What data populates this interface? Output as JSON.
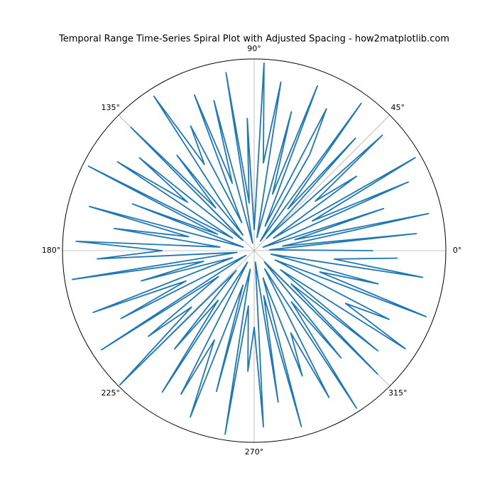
{
  "chart_data": {
    "type": "polar-line",
    "title": "Temporal Range Time-Series Spiral Plot with Adjusted Spacing - how2matplotlib.com",
    "x": [
      0,
      3,
      6,
      9,
      12,
      15,
      18,
      21,
      24,
      27,
      30,
      33,
      36,
      39,
      42,
      45,
      48,
      51,
      54,
      57,
      60,
      63,
      66,
      69,
      72,
      75,
      78,
      81,
      84,
      87,
      90,
      93,
      96,
      99,
      102,
      105,
      108,
      111,
      114,
      117,
      120,
      123,
      126,
      129,
      132,
      135,
      138,
      141,
      144,
      147,
      150,
      153,
      156,
      159,
      162,
      165,
      168,
      171,
      174,
      177,
      180,
      183,
      186,
      189,
      192,
      195,
      198,
      201,
      204,
      207,
      210,
      213,
      216,
      219,
      222,
      225,
      228,
      231,
      234,
      237,
      240,
      243,
      246,
      249,
      252,
      255,
      258,
      261,
      264,
      267,
      270,
      273,
      276,
      279,
      282,
      285,
      288,
      291,
      294,
      297,
      300,
      303,
      306,
      309,
      312,
      315,
      318,
      321,
      324,
      327,
      330,
      333,
      336,
      339,
      342,
      345,
      348,
      351,
      354,
      357
    ],
    "values": [
      0.62,
      0.08,
      0.85,
      0.15,
      0.93,
      0.22,
      0.71,
      0.05,
      0.88,
      0.34,
      0.97,
      0.12,
      0.66,
      0.41,
      0.9,
      0.09,
      0.79,
      0.28,
      0.95,
      0.06,
      0.58,
      0.83,
      0.14,
      0.92,
      0.31,
      0.75,
      0.07,
      0.89,
      0.46,
      0.98,
      0.11,
      0.69,
      0.25,
      0.94,
      0.04,
      0.81,
      0.37,
      0.87,
      0.16,
      0.73,
      0.52,
      0.96,
      0.1,
      0.64,
      0.3,
      0.91,
      0.08,
      0.77,
      0.43,
      0.85,
      0.13,
      0.97,
      0.21,
      0.68,
      0.06,
      0.89,
      0.35,
      0.74,
      0.18,
      0.93,
      0.48,
      0.82,
      0.09,
      0.96,
      0.27,
      0.61,
      0.12,
      0.9,
      0.39,
      0.78,
      0.05,
      0.95,
      0.23,
      0.71,
      0.44,
      0.99,
      0.14,
      0.66,
      0.32,
      0.88,
      0.07,
      0.84,
      0.51,
      0.93,
      0.19,
      0.76,
      0.1,
      0.97,
      0.29,
      0.63,
      0.4,
      0.92,
      0.06,
      0.8,
      0.24,
      0.95,
      0.15,
      0.7,
      0.47,
      0.86,
      0.11,
      0.98,
      0.33,
      0.72,
      0.08,
      0.91,
      0.26,
      0.83,
      0.17,
      0.94,
      0.55,
      0.79,
      0.12,
      0.96,
      0.36,
      0.67,
      0.09,
      0.89,
      0.42,
      0.75
    ],
    "color": "#1f77b4",
    "xlim": [
      0,
      360
    ],
    "xticks": [
      {
        "value": 0,
        "label": "0°"
      },
      {
        "value": 45,
        "label": "45°"
      },
      {
        "value": 90,
        "label": "90°"
      },
      {
        "value": 135,
        "label": "135°"
      },
      {
        "value": 180,
        "label": "180°"
      },
      {
        "value": 225,
        "label": "225°"
      },
      {
        "value": 270,
        "label": "270°"
      },
      {
        "value": 315,
        "label": "315°"
      }
    ],
    "ylim": [
      0,
      1
    ],
    "grid": true
  }
}
